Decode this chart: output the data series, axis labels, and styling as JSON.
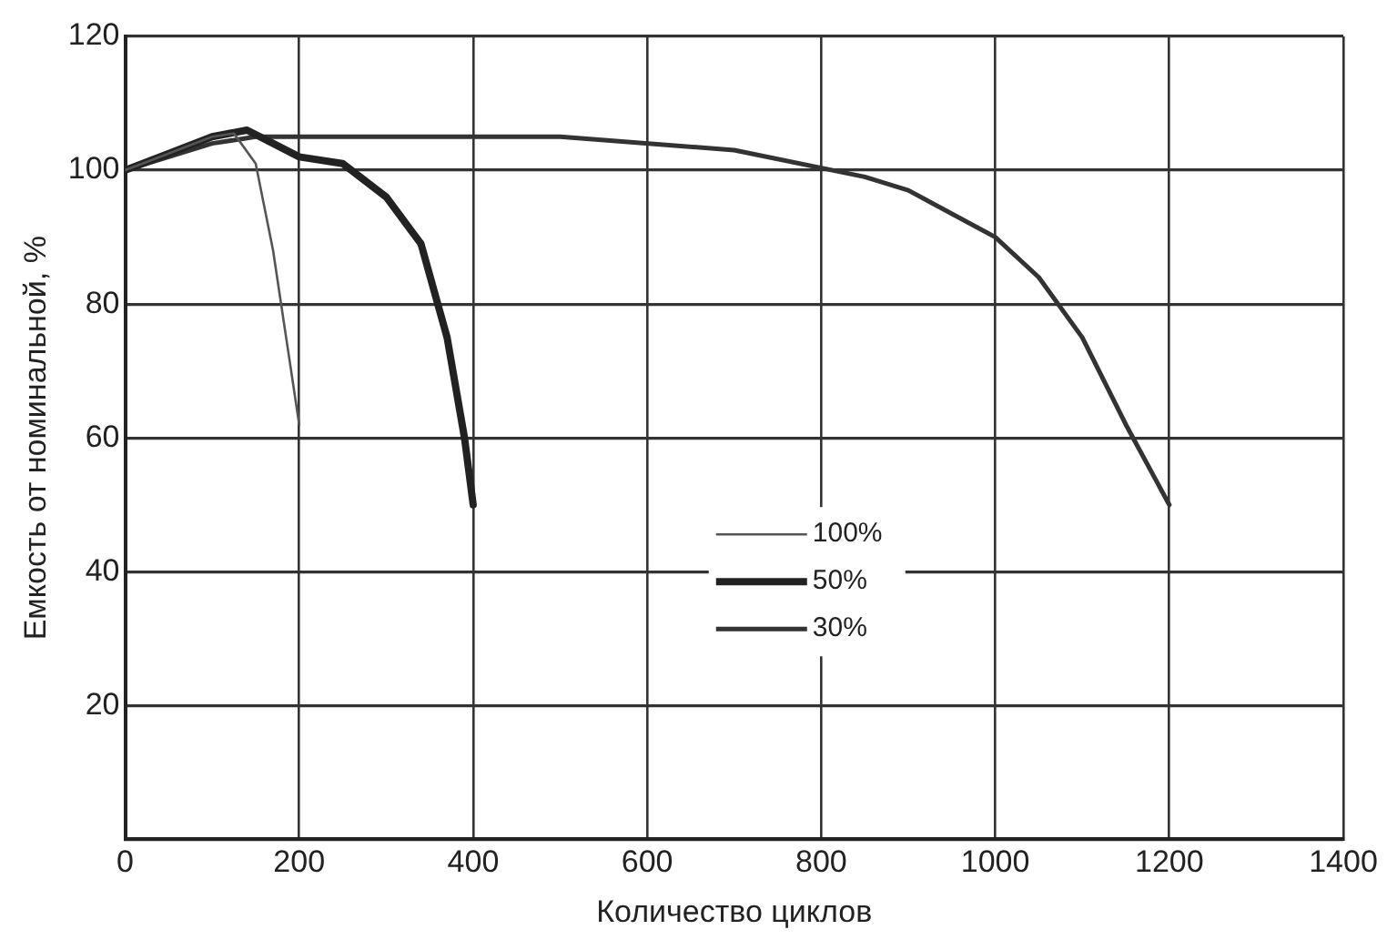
{
  "chart_data": {
    "type": "line",
    "xlabel": "Количество циклов",
    "ylabel": "Емкость от номинальной, %",
    "xlim": [
      0,
      1400
    ],
    "xticks": [
      0,
      200,
      400,
      600,
      800,
      1000,
      1200,
      1400
    ],
    "ylim": [
      0,
      120
    ],
    "yticks": [
      {
        "value": 0,
        "label": null
      },
      20,
      40,
      60,
      80,
      100,
      120
    ],
    "grid": true,
    "legend": "center",
    "marker": "none",
    "line_style": "solid",
    "series": [
      {
        "name": "100%",
        "color": "#555555",
        "x": [
          0,
          50,
          100,
          125,
          150,
          170,
          185,
          200
        ],
        "values": [
          100,
          102.5,
          105,
          105.5,
          101,
          88,
          75,
          62
        ]
      },
      {
        "name": "50%",
        "color": "#222222",
        "x": [
          0,
          50,
          100,
          140,
          170,
          200,
          250,
          300,
          340,
          370,
          390,
          400
        ],
        "values": [
          100,
          102.5,
          105,
          106,
          104,
          102,
          101,
          96,
          89,
          75,
          60,
          50
        ]
      },
      {
        "name": "30%",
        "color": "#333333",
        "x": [
          0,
          100,
          150,
          300,
          500,
          700,
          850,
          900,
          1000,
          1050,
          1100,
          1150,
          1200
        ],
        "values": [
          100,
          104,
          105,
          105,
          105,
          103,
          99,
          97,
          90,
          84,
          75,
          62,
          50
        ]
      }
    ]
  }
}
